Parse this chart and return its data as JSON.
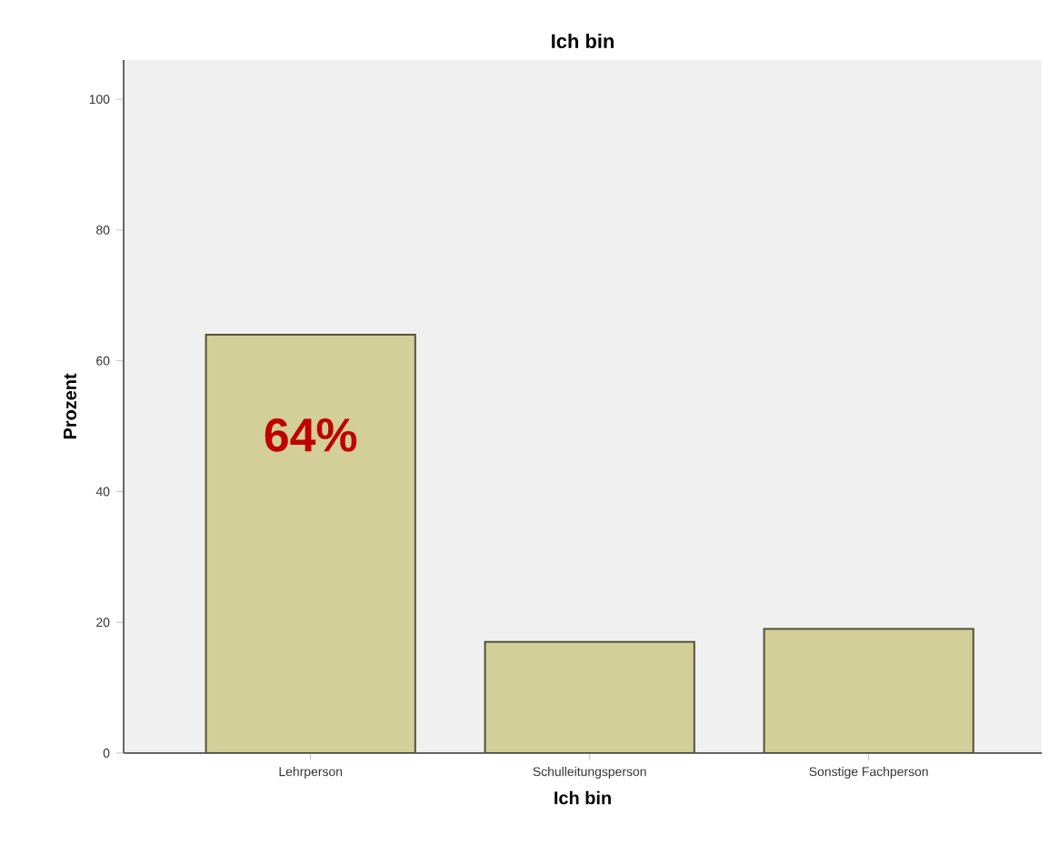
{
  "chart_data": {
    "type": "bar",
    "title": "Ich bin",
    "xlabel": "Ich bin",
    "ylabel": "Prozent",
    "categories": [
      "Lehrperson",
      "Schulleitungsperson",
      "Sonstige Fachperson"
    ],
    "values": [
      64,
      17,
      19
    ],
    "color": "#d3cf98",
    "ylim": [
      0,
      106
    ],
    "yticks": [
      0,
      20,
      40,
      60,
      80,
      100
    ],
    "value_labels": [
      "64%",
      null,
      null
    ]
  }
}
